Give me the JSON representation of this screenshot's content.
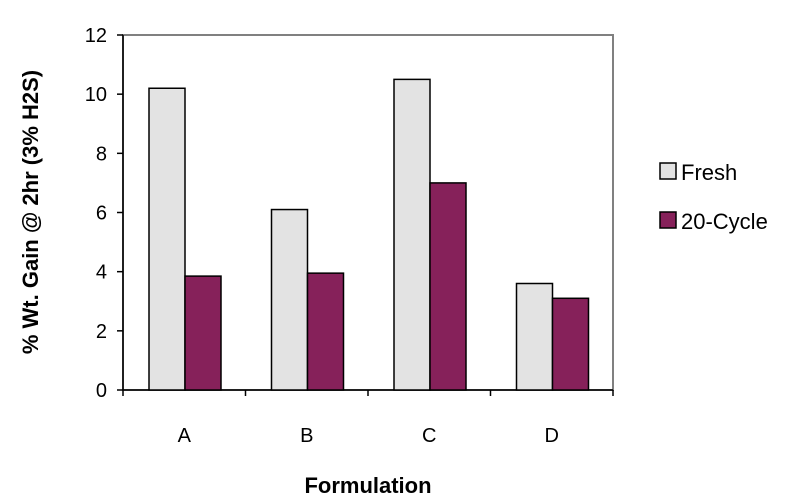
{
  "chart_data": {
    "type": "bar",
    "categories": [
      "A",
      "B",
      "C",
      "D"
    ],
    "series": [
      {
        "name": "Fresh",
        "values": [
          10.2,
          6.1,
          10.5,
          3.6
        ],
        "color": "#e3e3e3"
      },
      {
        "name": "20-Cycle",
        "values": [
          3.85,
          3.95,
          7.0,
          3.1
        ],
        "color": "#86215a"
      }
    ],
    "title": "",
    "xlabel": "Formulation",
    "ylabel": "% Wt. Gain @ 2hr (3% H2S)",
    "ylim": [
      0,
      12
    ],
    "yticks": [
      "0",
      "2",
      "4",
      "6",
      "8",
      "10",
      "12"
    ],
    "grid": false,
    "legend_position": "right"
  }
}
